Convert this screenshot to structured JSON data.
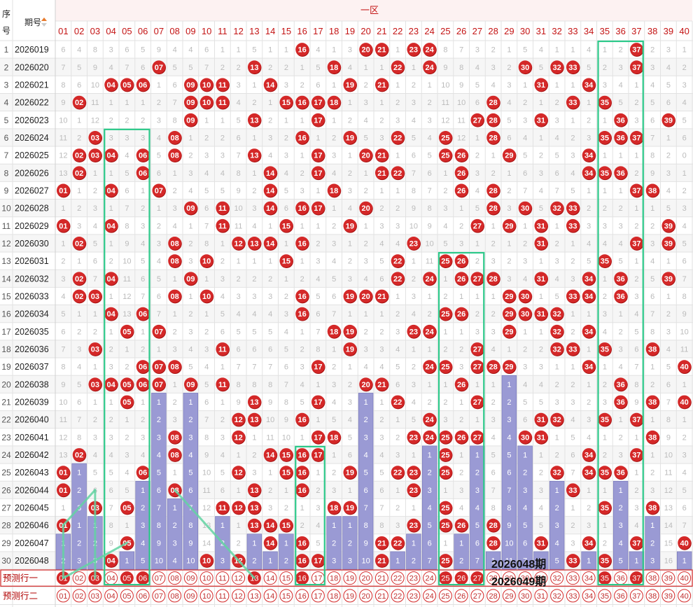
{
  "chart_data": {
    "type": "table",
    "section_label": "一区",
    "header": {
      "seq": "序号",
      "period": "期号",
      "sort_icon": "sort-icon"
    },
    "numbers": [
      "01",
      "02",
      "03",
      "04",
      "05",
      "06",
      "07",
      "08",
      "09",
      "10",
      "11",
      "12",
      "13",
      "14",
      "15",
      "16",
      "17",
      "18",
      "19",
      "20",
      "21",
      "22",
      "23",
      "24",
      "25",
      "26",
      "27",
      "28",
      "29",
      "30",
      "31",
      "32",
      "33",
      "34",
      "35",
      "36",
      "37",
      "38",
      "39",
      "40"
    ],
    "periods": [
      "2026019",
      "2026020",
      "2026021",
      "2026022",
      "2026023",
      "2026024",
      "2026025",
      "2026026",
      "2026027",
      "2026028",
      "2026029",
      "2026030",
      "2026031",
      "2026032",
      "2026033",
      "2026034",
      "2026035",
      "2026036",
      "2026037",
      "2026038",
      "2026039",
      "2026040",
      "2026041",
      "2026042",
      "2026043",
      "2026044",
      "2026045",
      "2026046",
      "2026047",
      "2026048"
    ],
    "draws": [
      [
        16,
        20,
        21,
        23,
        24,
        37
      ],
      [
        7,
        13,
        18,
        22,
        24,
        30,
        32,
        33,
        37
      ],
      [
        4,
        5,
        6,
        9,
        10,
        11,
        14,
        19,
        21,
        31,
        34
      ],
      [
        2,
        9,
        10,
        11,
        15,
        16,
        17,
        18,
        28,
        33,
        35
      ],
      [
        9,
        13,
        17,
        27,
        28,
        31,
        36,
        39
      ],
      [
        3,
        8,
        16,
        19,
        22,
        25,
        28,
        35,
        36,
        37
      ],
      [
        2,
        3,
        4,
        6,
        8,
        13,
        17,
        20,
        21,
        25,
        26,
        29,
        34
      ],
      [
        2,
        6,
        14,
        17,
        21,
        22,
        26,
        34,
        35,
        36
      ],
      [
        1,
        4,
        7,
        14,
        18,
        26,
        28,
        37,
        38
      ],
      [
        9,
        11,
        14,
        16,
        17,
        20,
        28,
        30,
        32,
        33
      ],
      [
        1,
        4,
        11,
        15,
        19,
        27,
        29,
        31,
        33,
        39
      ],
      [
        2,
        8,
        12,
        13,
        14,
        16,
        23,
        31,
        37,
        39
      ],
      [
        8,
        10,
        15,
        22,
        25,
        26,
        35
      ],
      [
        2,
        4,
        9,
        22,
        24,
        26,
        27,
        28,
        31,
        34,
        36,
        39
      ],
      [
        2,
        3,
        8,
        10,
        16,
        19,
        20,
        21,
        29,
        30,
        33,
        34,
        36
      ],
      [
        4,
        6,
        16,
        25,
        26,
        29,
        30,
        31,
        32
      ],
      [
        5,
        7,
        18,
        19,
        23,
        24,
        29,
        32,
        34
      ],
      [
        3,
        11,
        19,
        27,
        32,
        33,
        35,
        38
      ],
      [
        6,
        7,
        8,
        17,
        24,
        25,
        27,
        28,
        29,
        34,
        40
      ],
      [
        3,
        4,
        5,
        6,
        7,
        9,
        11,
        20,
        21,
        26,
        36
      ],
      [
        5,
        13,
        17,
        22,
        27,
        36,
        38,
        40
      ],
      [
        12,
        13,
        16,
        24,
        31,
        32,
        35,
        37
      ],
      [
        8,
        12,
        17,
        18,
        23,
        24,
        25,
        26,
        27,
        30,
        31,
        38
      ],
      [
        2,
        8,
        14,
        15,
        16,
        17,
        25,
        34,
        37
      ],
      [
        1,
        6,
        12,
        15,
        16,
        19,
        22,
        23,
        25,
        32,
        34,
        35,
        36
      ],
      [
        1,
        8,
        13,
        16,
        23,
        33
      ],
      [
        3,
        5,
        11,
        12,
        13,
        18,
        19,
        25,
        35,
        38
      ],
      [
        1,
        13,
        14,
        15,
        23,
        25,
        26,
        28
      ],
      [
        5,
        14,
        16,
        21,
        22,
        28,
        31,
        34,
        37,
        40
      ],
      [
        4,
        10,
        12,
        16,
        17,
        21,
        25,
        33,
        35
      ]
    ],
    "omission": [
      [
        6,
        4,
        8,
        3,
        6,
        5,
        9,
        4,
        4,
        6,
        1,
        1,
        5,
        1,
        1,
        0,
        4,
        1,
        3,
        0,
        0,
        1,
        0,
        0,
        8,
        7,
        3,
        2,
        1,
        5,
        4,
        1,
        1,
        4,
        1,
        2,
        0,
        2,
        3,
        1
      ],
      [
        7,
        5,
        9,
        4,
        7,
        6,
        0,
        5,
        5,
        7,
        2,
        2,
        0,
        2,
        2,
        1,
        5,
        0,
        4,
        1,
        1,
        0,
        1,
        0,
        9,
        8,
        4,
        3,
        2,
        0,
        5,
        0,
        0,
        5,
        2,
        3,
        0,
        3,
        4,
        2
      ],
      [
        8,
        6,
        10,
        0,
        0,
        0,
        1,
        6,
        0,
        0,
        0,
        3,
        1,
        0,
        3,
        2,
        6,
        1,
        0,
        2,
        0,
        1,
        2,
        1,
        10,
        9,
        5,
        4,
        3,
        1,
        0,
        1,
        1,
        0,
        3,
        4,
        1,
        4,
        5,
        3
      ],
      [
        9,
        0,
        11,
        1,
        1,
        1,
        2,
        7,
        0,
        0,
        0,
        4,
        2,
        1,
        0,
        0,
        0,
        0,
        1,
        3,
        1,
        2,
        3,
        2,
        11,
        10,
        6,
        0,
        4,
        2,
        1,
        2,
        0,
        1,
        0,
        5,
        2,
        5,
        6,
        4
      ],
      [
        10,
        1,
        12,
        2,
        2,
        2,
        3,
        8,
        0,
        1,
        1,
        5,
        0,
        2,
        1,
        1,
        0,
        1,
        2,
        4,
        2,
        3,
        4,
        3,
        12,
        11,
        0,
        0,
        5,
        3,
        0,
        3,
        1,
        2,
        1,
        0,
        3,
        6,
        0,
        5
      ],
      [
        11,
        2,
        0,
        3,
        3,
        3,
        4,
        0,
        1,
        2,
        2,
        6,
        1,
        3,
        2,
        0,
        1,
        2,
        0,
        5,
        3,
        0,
        5,
        4,
        0,
        12,
        1,
        0,
        6,
        4,
        1,
        4,
        2,
        3,
        0,
        0,
        0,
        7,
        1,
        6
      ],
      [
        12,
        0,
        0,
        0,
        4,
        0,
        5,
        0,
        2,
        3,
        3,
        7,
        0,
        4,
        3,
        1,
        0,
        3,
        1,
        0,
        0,
        1,
        6,
        5,
        0,
        0,
        2,
        1,
        0,
        5,
        2,
        5,
        3,
        0,
        1,
        1,
        1,
        8,
        2,
        0
      ],
      [
        13,
        0,
        1,
        1,
        5,
        0,
        6,
        1,
        3,
        4,
        4,
        8,
        1,
        0,
        4,
        2,
        0,
        4,
        2,
        1,
        0,
        0,
        7,
        6,
        1,
        0,
        3,
        2,
        1,
        6,
        3,
        6,
        4,
        0,
        0,
        0,
        2,
        9,
        3,
        1
      ],
      [
        0,
        1,
        2,
        0,
        6,
        1,
        0,
        2,
        4,
        5,
        5,
        9,
        2,
        0,
        5,
        3,
        1,
        0,
        3,
        2,
        1,
        1,
        8,
        7,
        2,
        0,
        4,
        0,
        2,
        7,
        4,
        7,
        5,
        1,
        1,
        1,
        0,
        0,
        4,
        2
      ],
      [
        1,
        2,
        3,
        1,
        7,
        2,
        1,
        3,
        0,
        6,
        0,
        10,
        3,
        0,
        6,
        0,
        0,
        1,
        4,
        0,
        2,
        2,
        9,
        8,
        3,
        1,
        5,
        0,
        3,
        0,
        5,
        0,
        0,
        2,
        2,
        2,
        1,
        1,
        5,
        3
      ],
      [
        0,
        3,
        4,
        0,
        8,
        3,
        2,
        4,
        1,
        7,
        0,
        11,
        4,
        1,
        0,
        1,
        1,
        2,
        0,
        1,
        3,
        3,
        10,
        9,
        4,
        2,
        0,
        1,
        0,
        1,
        0,
        1,
        0,
        3,
        3,
        3,
        2,
        2,
        0,
        4
      ],
      [
        1,
        0,
        5,
        1,
        9,
        4,
        3,
        0,
        2,
        8,
        1,
        0,
        0,
        0,
        1,
        0,
        2,
        3,
        1,
        2,
        4,
        4,
        0,
        10,
        5,
        3,
        1,
        2,
        1,
        2,
        0,
        2,
        1,
        4,
        4,
        4,
        0,
        3,
        0,
        5
      ],
      [
        2,
        1,
        6,
        2,
        10,
        5,
        4,
        0,
        3,
        0,
        2,
        1,
        1,
        1,
        0,
        1,
        3,
        4,
        2,
        3,
        5,
        0,
        1,
        11,
        0,
        0,
        2,
        3,
        2,
        3,
        1,
        3,
        2,
        5,
        0,
        5,
        1,
        4,
        1,
        6
      ],
      [
        3,
        0,
        7,
        0,
        11,
        6,
        5,
        1,
        0,
        1,
        3,
        2,
        2,
        2,
        1,
        2,
        4,
        5,
        3,
        4,
        6,
        0,
        2,
        0,
        1,
        0,
        0,
        0,
        3,
        4,
        0,
        4,
        3,
        0,
        1,
        0,
        2,
        5,
        0,
        7
      ],
      [
        4,
        0,
        0,
        1,
        12,
        7,
        6,
        0,
        1,
        0,
        4,
        3,
        3,
        3,
        2,
        0,
        5,
        6,
        0,
        0,
        0,
        1,
        3,
        1,
        2,
        1,
        1,
        1,
        0,
        0,
        1,
        5,
        0,
        0,
        2,
        0,
        3,
        6,
        1,
        8
      ],
      [
        5,
        1,
        1,
        0,
        13,
        0,
        7,
        1,
        2,
        1,
        5,
        4,
        4,
        4,
        3,
        0,
        6,
        7,
        1,
        1,
        1,
        2,
        4,
        2,
        0,
        0,
        2,
        2,
        0,
        0,
        0,
        0,
        1,
        1,
        3,
        1,
        4,
        7,
        2,
        9
      ],
      [
        6,
        2,
        2,
        1,
        0,
        1,
        0,
        2,
        3,
        2,
        6,
        5,
        5,
        5,
        4,
        1,
        7,
        0,
        0,
        2,
        2,
        3,
        0,
        0,
        1,
        1,
        3,
        3,
        0,
        1,
        1,
        0,
        2,
        0,
        4,
        2,
        5,
        8,
        3,
        10
      ],
      [
        7,
        3,
        0,
        2,
        1,
        2,
        1,
        3,
        4,
        3,
        0,
        6,
        6,
        6,
        5,
        2,
        8,
        1,
        0,
        3,
        3,
        4,
        1,
        1,
        2,
        2,
        0,
        4,
        1,
        2,
        2,
        0,
        0,
        1,
        0,
        3,
        6,
        0,
        4,
        11
      ],
      [
        8,
        4,
        1,
        3,
        2,
        0,
        0,
        0,
        5,
        4,
        1,
        7,
        7,
        7,
        6,
        3,
        0,
        2,
        1,
        4,
        4,
        5,
        2,
        0,
        0,
        3,
        0,
        0,
        0,
        3,
        3,
        1,
        1,
        0,
        1,
        4,
        7,
        1,
        5,
        0
      ],
      [
        9,
        5,
        0,
        0,
        0,
        0,
        0,
        1,
        0,
        5,
        0,
        8,
        8,
        8,
        7,
        4,
        1,
        3,
        2,
        0,
        0,
        6,
        3,
        1,
        1,
        0,
        1,
        1,
        1,
        4,
        4,
        2,
        2,
        1,
        2,
        0,
        8,
        2,
        6,
        1
      ],
      [
        10,
        6,
        1,
        1,
        0,
        1,
        1,
        2,
        1,
        6,
        1,
        9,
        0,
        9,
        8,
        5,
        0,
        4,
        3,
        1,
        1,
        0,
        4,
        2,
        2,
        1,
        0,
        2,
        2,
        5,
        5,
        3,
        3,
        2,
        3,
        0,
        9,
        0,
        7,
        0
      ],
      [
        11,
        7,
        2,
        2,
        1,
        2,
        2,
        3,
        2,
        7,
        2,
        0,
        0,
        10,
        9,
        0,
        1,
        5,
        4,
        2,
        2,
        1,
        5,
        0,
        3,
        2,
        1,
        3,
        3,
        6,
        0,
        0,
        4,
        3,
        0,
        1,
        0,
        1,
        8,
        1
      ],
      [
        12,
        8,
        3,
        3,
        2,
        3,
        3,
        0,
        3,
        8,
        3,
        0,
        1,
        11,
        10,
        1,
        0,
        0,
        5,
        3,
        3,
        2,
        0,
        0,
        0,
        0,
        0,
        4,
        4,
        0,
        0,
        1,
        5,
        4,
        1,
        2,
        1,
        0,
        9,
        2
      ],
      [
        13,
        0,
        4,
        4,
        3,
        4,
        4,
        0,
        4,
        9,
        4,
        1,
        2,
        0,
        0,
        0,
        0,
        1,
        6,
        4,
        4,
        3,
        1,
        1,
        0,
        1,
        1,
        5,
        5,
        1,
        1,
        2,
        6,
        0,
        2,
        3,
        0,
        1,
        10,
        3
      ],
      [
        0,
        1,
        5,
        5,
        4,
        0,
        5,
        1,
        5,
        10,
        5,
        0,
        3,
        1,
        0,
        0,
        1,
        2,
        0,
        5,
        5,
        0,
        0,
        2,
        0,
        2,
        2,
        6,
        6,
        2,
        2,
        0,
        7,
        0,
        0,
        0,
        1,
        2,
        11,
        4
      ],
      [
        0,
        2,
        6,
        6,
        5,
        1,
        6,
        0,
        6,
        11,
        6,
        1,
        0,
        2,
        1,
        0,
        2,
        3,
        1,
        6,
        6,
        1,
        0,
        3,
        1,
        3,
        3,
        7,
        7,
        3,
        3,
        1,
        0,
        1,
        1,
        1,
        2,
        3,
        12,
        5
      ],
      [
        1,
        3,
        0,
        7,
        0,
        2,
        7,
        1,
        7,
        12,
        0,
        0,
        0,
        3,
        2,
        1,
        3,
        0,
        0,
        7,
        7,
        2,
        1,
        4,
        0,
        4,
        4,
        8,
        8,
        4,
        4,
        2,
        1,
        2,
        0,
        2,
        3,
        0,
        13,
        6
      ],
      [
        0,
        1,
        1,
        8,
        1,
        3,
        8,
        2,
        8,
        13,
        1,
        1,
        0,
        0,
        0,
        2,
        4,
        1,
        1,
        8,
        8,
        3,
        0,
        5,
        0,
        0,
        5,
        0,
        9,
        5,
        5,
        3,
        2,
        3,
        1,
        3,
        4,
        1,
        14,
        7
      ],
      [
        1,
        2,
        2,
        9,
        0,
        4,
        9,
        3,
        9,
        14,
        2,
        2,
        1,
        0,
        1,
        0,
        5,
        2,
        2,
        9,
        0,
        0,
        1,
        6,
        1,
        1,
        6,
        0,
        10,
        6,
        0,
        4,
        3,
        0,
        2,
        4,
        0,
        2,
        15,
        0
      ],
      [
        2,
        3,
        3,
        0,
        1,
        5,
        10,
        4,
        10,
        0,
        3,
        0,
        2,
        1,
        2,
        0,
        0,
        3,
        3,
        10,
        0,
        1,
        2,
        7,
        0,
        2,
        7,
        1,
        11,
        7,
        1,
        5,
        0,
        1,
        0,
        5,
        1,
        3,
        16,
        1
      ]
    ],
    "prediction_rows": [
      {
        "label": "预测行一",
        "picks": [
          1,
          3,
          5,
          6,
          13,
          16,
          25,
          26,
          27,
          35,
          37
        ]
      },
      {
        "label": "预测行二",
        "picks": []
      }
    ],
    "annotations": [
      "2026048期",
      "2026049期"
    ],
    "colors": {
      "ball": "#d42828",
      "ball_shadow": "#a50e0e",
      "bar": "#9a9ad4",
      "bar_border": "#7474b8",
      "highlight_box": "#2dc98a",
      "connector": "#63d4a3",
      "header_text": "#c41414",
      "alt_row": "#f6f6f6",
      "predict_border": "#d33333"
    }
  }
}
